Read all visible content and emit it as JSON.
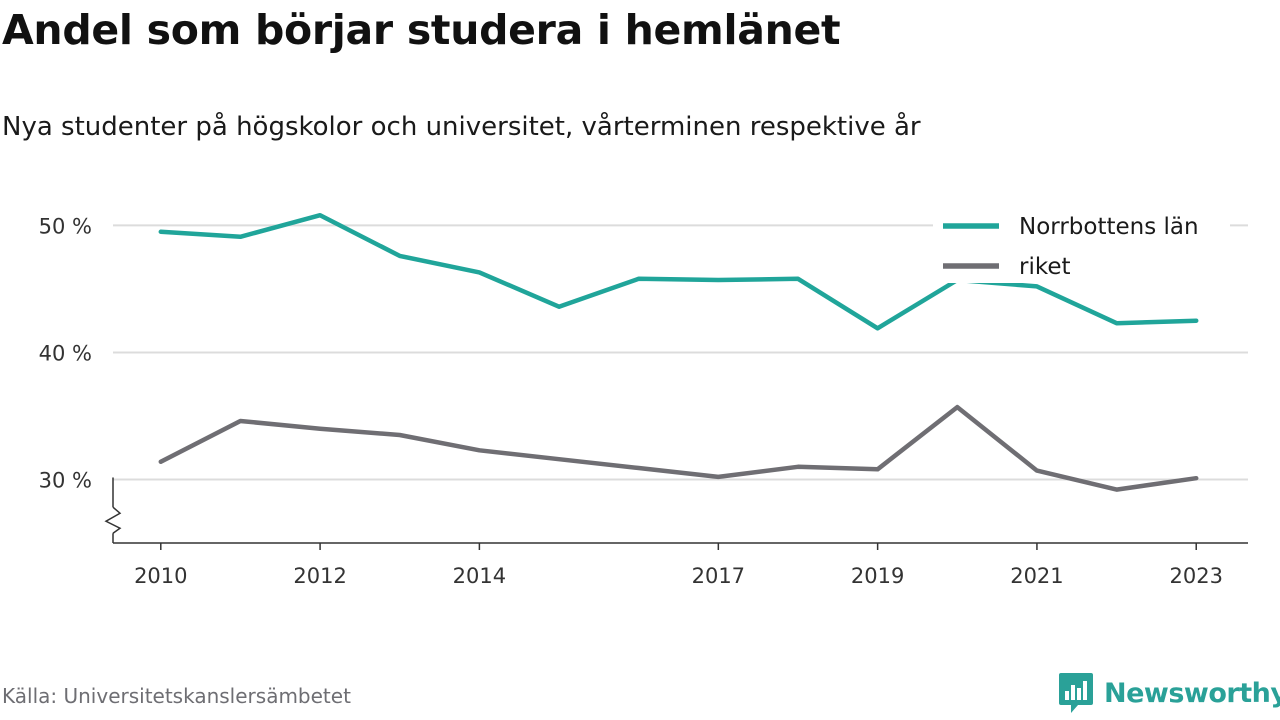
{
  "header": {
    "title": "Andel som börjar studera i hemlänet",
    "subtitle": "Nya studenter på högskolor och universitet, vårterminen respektive år"
  },
  "footer": {
    "source": "Källa: Universitetskanslersämbetet",
    "brand": "Newsworthy",
    "brand_icon": "bar-chart-speech-bubble-icon"
  },
  "colors": {
    "norrbotten": "#20a59a",
    "riket": "#6f6e73",
    "grid": "#dcdcdc",
    "axis": "#333333",
    "brand": "#2aa198"
  },
  "chart_data": {
    "type": "line",
    "title": "Andel som börjar studera i hemlänet",
    "subtitle": "Nya studenter på högskolor och universitet, vårterminen respektive år",
    "x": [
      2010,
      2011,
      2012,
      2013,
      2014,
      2015,
      2016,
      2017,
      2018,
      2019,
      2020,
      2021,
      2022,
      2023
    ],
    "x_tick_labels": [
      "2010",
      "2012",
      "2014",
      "2017",
      "2019",
      "2021",
      "2023"
    ],
    "y_tick_labels": [
      "30 %",
      "40 %",
      "50 %"
    ],
    "y_ticks": [
      30,
      40,
      50
    ],
    "ylim": [
      25,
      52
    ],
    "xlim": [
      2009.4,
      2023.65
    ],
    "y_axis_break": true,
    "grid": "horizontal",
    "legend_position": "top-right",
    "series": [
      {
        "name": "Norrbottens län",
        "color": "#20a59a",
        "values": [
          49.5,
          49.1,
          50.8,
          47.6,
          46.3,
          43.6,
          45.8,
          45.7,
          45.8,
          41.9,
          45.7,
          45.2,
          42.3,
          42.5
        ]
      },
      {
        "name": "riket",
        "color": "#6f6e73",
        "values": [
          31.4,
          34.6,
          34.0,
          33.5,
          32.3,
          31.6,
          30.9,
          30.2,
          31.0,
          30.8,
          35.7,
          30.7,
          29.2,
          30.1
        ]
      }
    ]
  }
}
